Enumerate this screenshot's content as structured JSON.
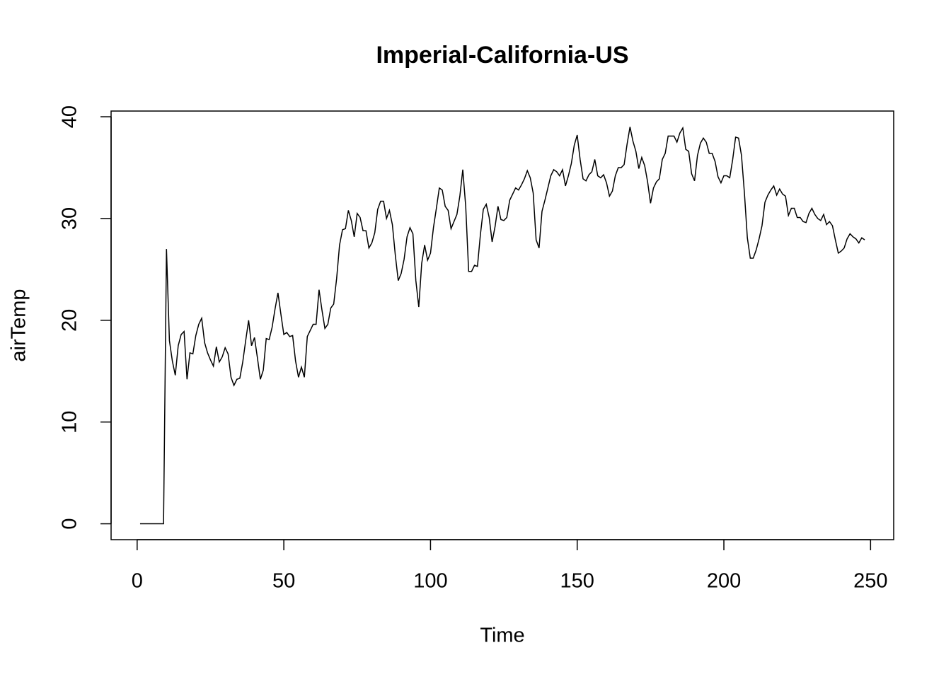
{
  "chart_data": {
    "type": "line",
    "title": "Imperial-California-US",
    "x_label": "Time",
    "y_label": "airTemp",
    "x": [
      1,
      2,
      3,
      4,
      5,
      6,
      7,
      8,
      9,
      10,
      11,
      12,
      13,
      14,
      15,
      16,
      17,
      18,
      19,
      20,
      21,
      22,
      23,
      24,
      25,
      26,
      27,
      28,
      29,
      30,
      31,
      32,
      33,
      34,
      35,
      36,
      37,
      38,
      39,
      40,
      41,
      42,
      43,
      44,
      45,
      46,
      47,
      48,
      49,
      50,
      51,
      52,
      53,
      54,
      55,
      56,
      57,
      58,
      59,
      60,
      61,
      62,
      63,
      64,
      65,
      66,
      67,
      68,
      69,
      70,
      71,
      72,
      73,
      74,
      75,
      76,
      77,
      78,
      79,
      80,
      81,
      82,
      83,
      84,
      85,
      86,
      87,
      88,
      89,
      90,
      91,
      92,
      93,
      94,
      95,
      96,
      97,
      98,
      99,
      100,
      101,
      102,
      103,
      104,
      105,
      106,
      107,
      108,
      109,
      110,
      111,
      112,
      113,
      114,
      115,
      116,
      117,
      118,
      119,
      120,
      121,
      122,
      123,
      124,
      125,
      126,
      127,
      128,
      129,
      130,
      131,
      132,
      133,
      134,
      135,
      136,
      137,
      138,
      139,
      140,
      141,
      142,
      143,
      144,
      145,
      146,
      147,
      148,
      149,
      150,
      151,
      152,
      153,
      154,
      155,
      156,
      157,
      158,
      159,
      160,
      161,
      162,
      163,
      164,
      165,
      166,
      167,
      168,
      169,
      170,
      171,
      172,
      173,
      174,
      175,
      176,
      177,
      178,
      179,
      180,
      181,
      182,
      183,
      184,
      185,
      186,
      187,
      188,
      189,
      190,
      191,
      192,
      193,
      194,
      195,
      196,
      197,
      198,
      199,
      200,
      201,
      202,
      203,
      204,
      205,
      206,
      207,
      208,
      209,
      210,
      211,
      212,
      213,
      214,
      215,
      216,
      217,
      218,
      219,
      220,
      221,
      222,
      223,
      224,
      225,
      226,
      227,
      228,
      229,
      230,
      231,
      232,
      233,
      234,
      235,
      236,
      237,
      238,
      239,
      240,
      241,
      242,
      243,
      244,
      245,
      246,
      247,
      248
    ],
    "series": [
      {
        "name": "airTemp",
        "color": "#000000",
        "values": [
          0,
          0,
          0,
          0,
          0,
          0,
          0,
          0,
          0,
          27,
          18,
          16,
          14.6,
          17.5,
          18.6,
          18.9,
          14.2,
          16.8,
          16.7,
          18.5,
          19.6,
          20.2,
          17.8,
          16.8,
          16.1,
          15.5,
          17.4,
          15.9,
          16.4,
          17.3,
          16.7,
          14.4,
          13.6,
          14.2,
          14.3,
          15.9,
          18,
          20,
          17.5,
          18.3,
          16.3,
          14.2,
          15.1,
          18.2,
          18.1,
          19.3,
          21.1,
          22.7,
          20.6,
          18.6,
          18.8,
          18.4,
          18.5,
          16,
          14.4,
          15.4,
          14.4,
          18.4,
          19,
          19.6,
          19.6,
          23,
          21,
          19.2,
          19.6,
          21.2,
          21.6,
          24.1,
          27.4,
          28.9,
          29,
          30.8,
          29.8,
          28.2,
          30.5,
          30.1,
          28.8,
          28.8,
          27.1,
          27.6,
          28.6,
          30.9,
          31.7,
          31.7,
          30,
          30.8,
          29.4,
          26.4,
          23.9,
          24.6,
          26,
          28.2,
          29.1,
          28.5,
          23.9,
          21.3,
          25.6,
          27.4,
          25.9,
          26.6,
          29.1,
          31,
          33,
          32.8,
          31.2,
          30.8,
          29,
          29.7,
          30.4,
          32.2,
          34.8,
          31.2,
          24.8,
          24.8,
          25.4,
          25.3,
          28.4,
          30.9,
          31.4,
          30.1,
          27.7,
          29.2,
          31.2,
          29.9,
          29.8,
          30.1,
          31.8,
          32.4,
          33,
          32.8,
          33.3,
          33.9,
          34.7,
          34,
          32.5,
          27.9,
          27.1,
          30.7,
          31.8,
          33,
          34.2,
          34.8,
          34.6,
          34.2,
          34.8,
          33.2,
          34.2,
          35.4,
          37.2,
          38.2,
          35.8,
          33.9,
          33.7,
          34.3,
          34.6,
          35.8,
          34.2,
          34,
          34.3,
          33.5,
          32.2,
          32.7,
          34.2,
          35,
          35,
          35.3,
          37.3,
          39,
          37.6,
          36.6,
          34.9,
          36,
          35.2,
          33.6,
          31.5,
          33,
          33.6,
          33.9,
          35.8,
          36.4,
          38.1,
          38.1,
          38.1,
          37.5,
          38.4,
          38.9,
          36.8,
          36.6,
          34.4,
          33.7,
          36.2,
          37.4,
          37.9,
          37.5,
          36.4,
          36.4,
          35.6,
          34.1,
          33.5,
          34.2,
          34.2,
          34,
          35.8,
          38,
          37.9,
          36.2,
          32.5,
          28.1,
          26.1,
          26.1,
          26.9,
          28,
          29.3,
          31.6,
          32.3,
          32.8,
          33.2,
          32.3,
          32.9,
          32.4,
          32.2,
          30.3,
          31,
          31,
          30.1,
          30.1,
          29.7,
          29.6,
          30.5,
          31,
          30.4,
          30,
          29.8,
          30.4,
          29.4,
          29.7,
          29.3,
          27.9,
          26.6,
          26.8,
          27.1,
          28,
          28.5,
          28.2,
          28,
          27.6,
          28.1,
          27.9
        ]
      }
    ],
    "xlim": [
      -8.88,
      257.88
    ],
    "ylim": [
      -1.56,
      40.56
    ],
    "xticks": [
      0,
      50,
      100,
      150,
      200,
      250
    ],
    "yticks": [
      0,
      10,
      20,
      30,
      40
    ]
  }
}
